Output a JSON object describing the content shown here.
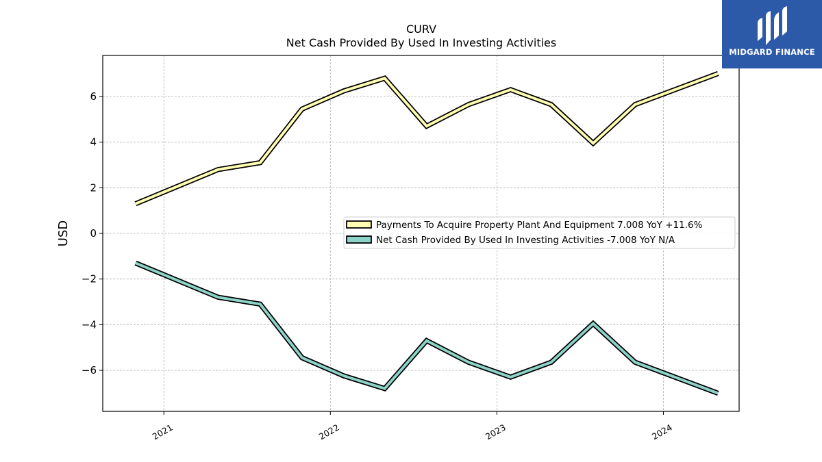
{
  "chart_data": {
    "type": "line",
    "title": "CURV",
    "subtitle": "Net Cash Provided By Used In Investing Activities",
    "ylabel": "USD",
    "xlabel": "",
    "ylim": [
      -7.8,
      7.8
    ],
    "yticks": [
      -6,
      -4,
      -2,
      0,
      2,
      4,
      6
    ],
    "ytick_labels": [
      "−6",
      "−4",
      "−2",
      "0",
      "2",
      "4",
      "6"
    ],
    "xlim": [
      "2020-08-20",
      "2024-06-15"
    ],
    "xticks": [
      "2021-01-01",
      "2022-01-01",
      "2023-01-01",
      "2024-01-01"
    ],
    "xtick_labels": [
      "2021",
      "2022",
      "2023",
      "2024"
    ],
    "grid": true,
    "legend_position": "center-right",
    "x": [
      "2020-10-31",
      "2021-04-30",
      "2021-07-31",
      "2021-10-31",
      "2022-01-31",
      "2022-04-30",
      "2022-07-31",
      "2022-10-31",
      "2023-01-31",
      "2023-04-30",
      "2023-07-31",
      "2023-10-31",
      "2024-04-30"
    ],
    "series": [
      {
        "name": "Payments To Acquire Property Plant And Equipment",
        "legend_label": "Payments To Acquire Property Plant And Equipment  7.008 YoY +11.6%",
        "color": "#ffffb3",
        "values": [
          1.3,
          2.8,
          3.1,
          5.45,
          6.25,
          6.8,
          4.7,
          5.65,
          6.3,
          5.65,
          3.95,
          5.65,
          7.008
        ]
      },
      {
        "name": "Net Cash Provided By Used In Investing Activities",
        "legend_label": "Net Cash Provided By Used In Investing Activities  -7.008 YoY N/A",
        "color": "#8dd3c7",
        "values": [
          -1.3,
          -2.8,
          -3.1,
          -5.45,
          -6.25,
          -6.8,
          -4.7,
          -5.65,
          -6.3,
          -5.65,
          -3.95,
          -5.65,
          -7.008
        ]
      }
    ]
  },
  "branding": {
    "logo_text": "MIDGARD FINANCE",
    "logo_bg": "#2d5aa8",
    "logo_icon": "midgard-logo-icon"
  }
}
